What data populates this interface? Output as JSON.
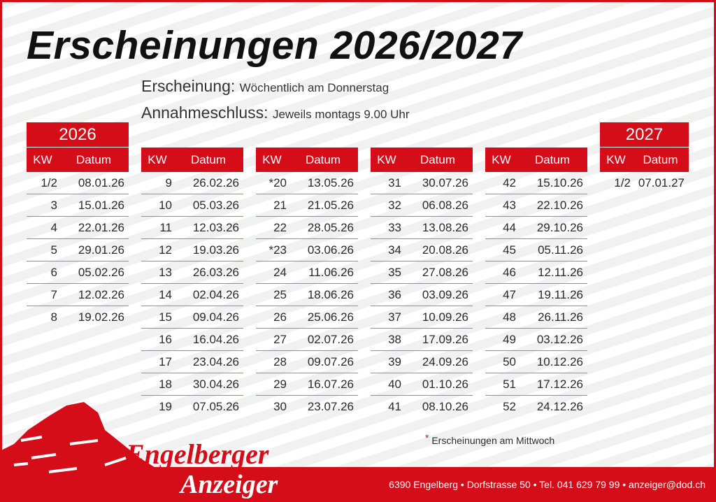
{
  "title": "Erscheinungen 2026/2027",
  "info": {
    "erscheinung_label": "Erscheinung:",
    "erscheinung_value": "Wöchentlich am Donnerstag",
    "annahme_label": "Annahmeschluss:",
    "annahme_value": "Jeweils montags 9.00 Uhr"
  },
  "years": {
    "y2026": "2026",
    "y2027": "2027"
  },
  "headers": {
    "kw": "KW",
    "datum": "Datum"
  },
  "columns": [
    [
      [
        "1/2",
        "08.01.26"
      ],
      [
        "3",
        "15.01.26"
      ],
      [
        "4",
        "22.01.26"
      ],
      [
        "5",
        "29.01.26"
      ],
      [
        "6",
        "05.02.26"
      ],
      [
        "7",
        "12.02.26"
      ],
      [
        "8",
        "19.02.26"
      ]
    ],
    [
      [
        "9",
        "26.02.26"
      ],
      [
        "10",
        "05.03.26"
      ],
      [
        "11",
        "12.03.26"
      ],
      [
        "12",
        "19.03.26"
      ],
      [
        "13",
        "26.03.26"
      ],
      [
        "14",
        "02.04.26"
      ],
      [
        "15",
        "09.04.26"
      ],
      [
        "16",
        "16.04.26"
      ],
      [
        "17",
        "23.04.26"
      ],
      [
        "18",
        "30.04.26"
      ],
      [
        "19",
        "07.05.26"
      ]
    ],
    [
      [
        "*20",
        "13.05.26"
      ],
      [
        "21",
        "21.05.26"
      ],
      [
        "22",
        "28.05.26"
      ],
      [
        "*23",
        "03.06.26"
      ],
      [
        "24",
        "11.06.26"
      ],
      [
        "25",
        "18.06.26"
      ],
      [
        "26",
        "25.06.26"
      ],
      [
        "27",
        "02.07.26"
      ],
      [
        "28",
        "09.07.26"
      ],
      [
        "29",
        "16.07.26"
      ],
      [
        "30",
        "23.07.26"
      ]
    ],
    [
      [
        "31",
        "30.07.26"
      ],
      [
        "32",
        "06.08.26"
      ],
      [
        "33",
        "13.08.26"
      ],
      [
        "34",
        "20.08.26"
      ],
      [
        "35",
        "27.08.26"
      ],
      [
        "36",
        "03.09.26"
      ],
      [
        "37",
        "10.09.26"
      ],
      [
        "38",
        "17.09.26"
      ],
      [
        "39",
        "24.09.26"
      ],
      [
        "40",
        "01.10.26"
      ],
      [
        "41",
        "08.10.26"
      ]
    ],
    [
      [
        "42",
        "15.10.26"
      ],
      [
        "43",
        "22.10.26"
      ],
      [
        "44",
        "29.10.26"
      ],
      [
        "45",
        "05.11.26"
      ],
      [
        "46",
        "12.11.26"
      ],
      [
        "47",
        "19.11.26"
      ],
      [
        "48",
        "26.11.26"
      ],
      [
        "49",
        "03.12.26"
      ],
      [
        "50",
        "10.12.26"
      ],
      [
        "51",
        "17.12.26"
      ],
      [
        "52",
        "24.12.26"
      ]
    ],
    [
      [
        "1/2",
        "07.01.27"
      ]
    ]
  ],
  "note": {
    "star": "*",
    "text": "Erscheinungen am Mittwoch"
  },
  "brand": {
    "line1": "Engelberger",
    "line2": "Anzeiger"
  },
  "footer": {
    "address": "6390 Engelberg • Dorfstrasse 50 • Tel. 041 629 79 99 • anzeiger@dod.ch"
  },
  "colors": {
    "accent": "#d40d19"
  }
}
